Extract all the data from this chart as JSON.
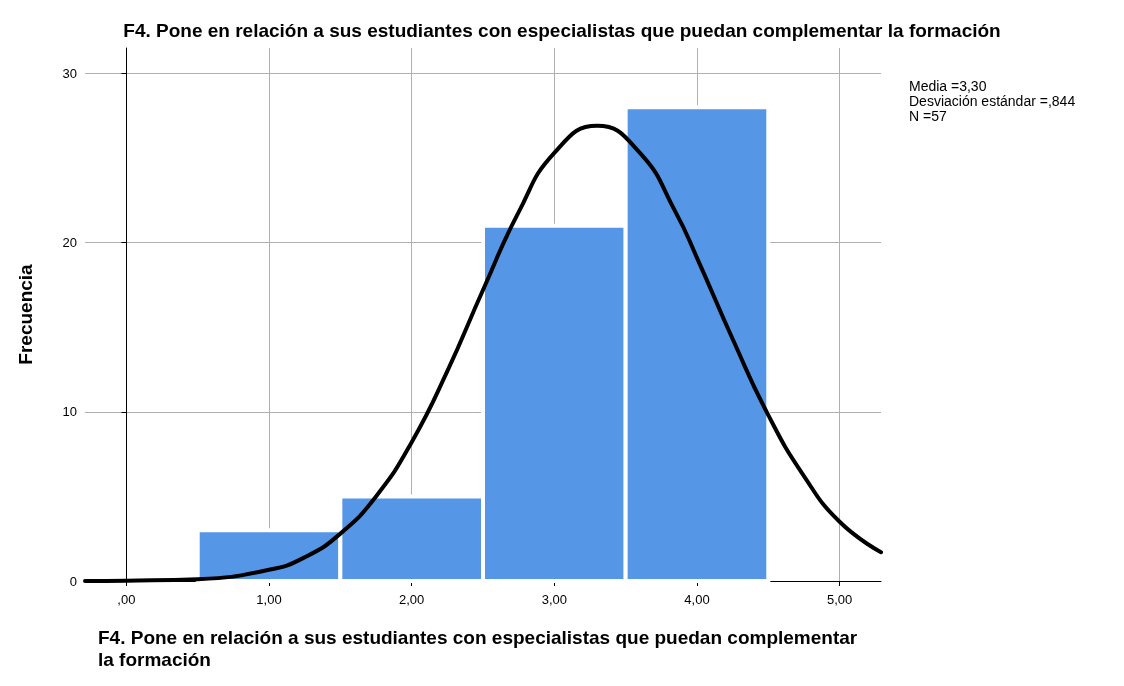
{
  "chart_data": {
    "type": "histogram",
    "title": "F4. Pone en relación a sus estudiantes con especialistas que puedan complementar la formación",
    "xlabel": "F4. Pone en relación a sus estudiantes con especialistas que puedan complementar la formación",
    "ylabel": "Frecuencia",
    "bins": [
      0.5,
      1.5,
      2.5,
      3.5,
      4.5
    ],
    "values": [
      3,
      5,
      21,
      28
    ],
    "color": "#5596e6",
    "series": [
      {
        "type": "line",
        "color": "#000000",
        "x": [
          -0.29,
          0,
          0.5,
          1,
          1.25,
          1.5,
          1.75,
          2,
          2.25,
          2.5,
          2.75,
          3,
          3.3,
          3.6,
          3.85,
          4,
          4.25,
          4.5,
          4.75,
          5,
          5.29
        ],
        "values": [
          0,
          0.02,
          0.11,
          0.66,
          1.4,
          2.8,
          5,
          8.2,
          12.4,
          17.2,
          21.8,
          25.3,
          26.9,
          25.3,
          21.8,
          19.1,
          14.3,
          9.8,
          6.2,
          3.5,
          1.7
        ]
      }
    ],
    "xlim": [
      -0.29,
      5.29
    ],
    "xticks": [
      {
        "value": 0,
        "label": ",00"
      },
      {
        "value": 1,
        "label": "1,00"
      },
      {
        "value": 2,
        "label": "2,00"
      },
      {
        "value": 3,
        "label": "3,00"
      },
      {
        "value": 4,
        "label": "4,00"
      },
      {
        "value": 5,
        "label": "5,00"
      }
    ],
    "ylim": [
      0,
      31.5
    ],
    "yticks": [
      0,
      10,
      20,
      30
    ],
    "grid": true,
    "marker": "none",
    "line_style": "solid",
    "annotations": [
      "Media =3,30",
      "Desviación estándar =,844",
      "N =57"
    ]
  }
}
